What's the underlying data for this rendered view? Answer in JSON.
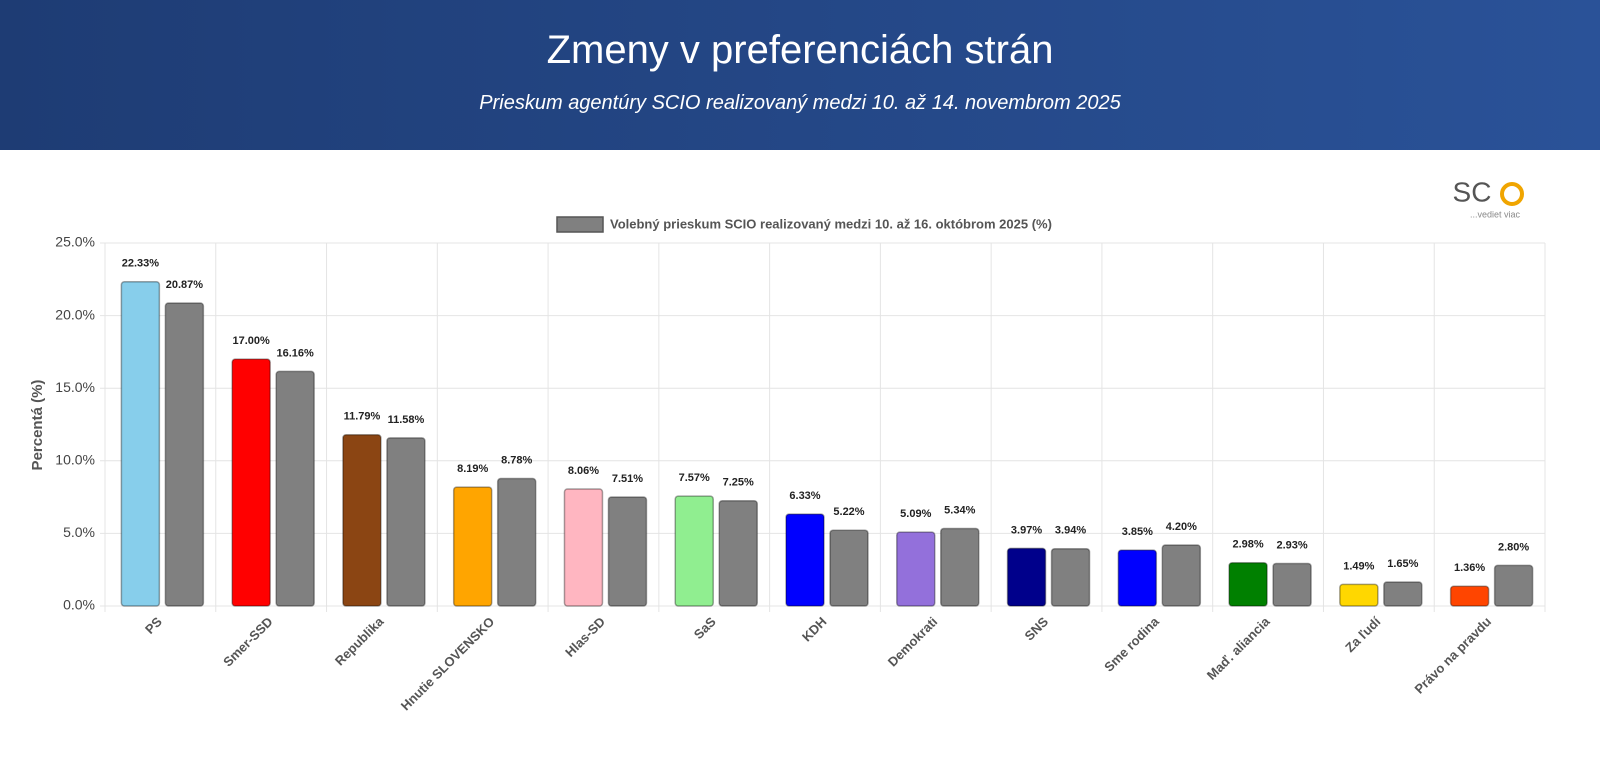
{
  "header": {
    "title": "Zmeny v preferenciách strán",
    "subtitle": "Prieskum agentúry SCIO realizovaný medzi 10. až 14. novembrom 2025"
  },
  "logo": {
    "text": "SC",
    "tagline": "...vediet viac"
  },
  "chart_data": {
    "type": "bar",
    "y_label": "Percentá (%)",
    "categories": [
      "PS",
      "Smer-SSD",
      "Republika",
      "Hnutie SLOVENSKO",
      "Hlas-SD",
      "SaS",
      "KDH",
      "Demokrati",
      "SNS",
      "Sme rodina",
      "Maď. aliancia",
      "Za ľudí",
      "Právo na pravdu"
    ],
    "series": [
      {
        "colors": [
          "#87ceeb",
          "#ff0000",
          "#8b4513",
          "#ffa500",
          "#ffb6c1",
          "#90ee90",
          "#0000ff",
          "#9370db",
          "#00008b",
          "#0000ff",
          "#008000",
          "#ffd700",
          "#ff4500"
        ],
        "values": [
          22.33,
          17.0,
          11.79,
          8.19,
          8.06,
          7.57,
          6.33,
          5.09,
          3.97,
          3.85,
          2.98,
          1.49,
          1.36
        ],
        "value_labels": [
          "22.33%",
          "17.00%",
          "11.79%",
          "8.19%",
          "8.06%",
          "7.57%",
          "6.33%",
          "5.09%",
          "3.97%",
          "3.85%",
          "2.98%",
          "1.49%",
          "1.36%"
        ]
      },
      {
        "name": "Volebný prieskum SCIO realizovaný medzi 10. až 16. októbrom 2025 (%)",
        "color": "#808080",
        "values": [
          20.87,
          16.16,
          11.58,
          8.78,
          7.51,
          7.25,
          5.22,
          5.34,
          3.94,
          4.2,
          2.93,
          1.65,
          2.8
        ],
        "value_labels": [
          "20.87%",
          "16.16%",
          "11.58%",
          "8.78%",
          "7.51%",
          "7.25%",
          "5.22%",
          "5.34%",
          "3.94%",
          "4.20%",
          "2.93%",
          "1.65%",
          "2.80%"
        ]
      }
    ],
    "ylim": [
      0,
      25
    ],
    "yticks": [
      {
        "value": 0,
        "label": "0.0%"
      },
      {
        "value": 5,
        "label": "5.0%"
      },
      {
        "value": 10,
        "label": "10.0%"
      },
      {
        "value": 15,
        "label": "15.0%"
      },
      {
        "value": 20,
        "label": "20.0%"
      },
      {
        "value": 25,
        "label": "25.0%"
      }
    ],
    "grid": true
  }
}
